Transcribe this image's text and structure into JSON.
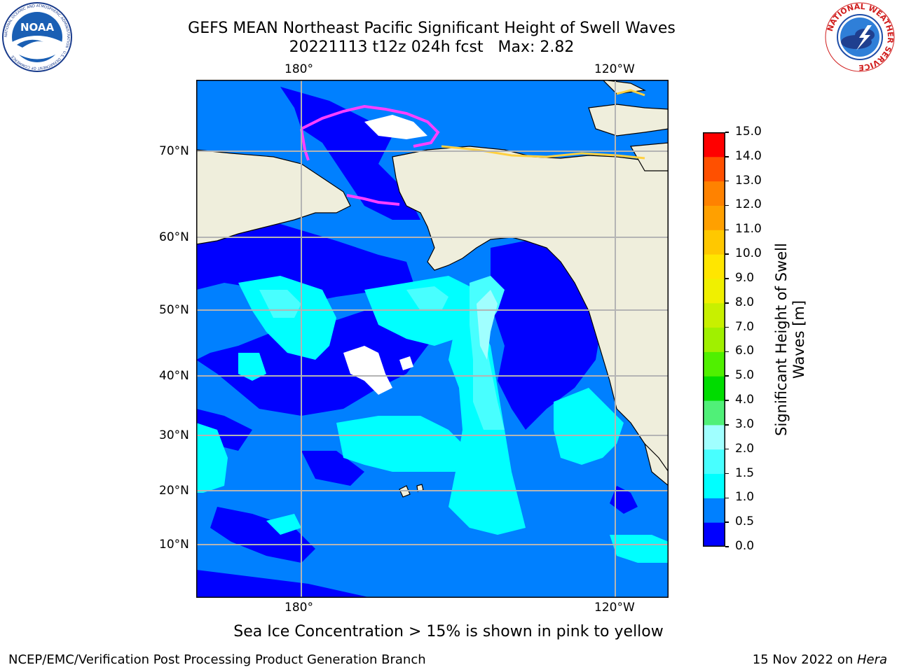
{
  "header": {
    "title_line1": "GEFS MEAN Northeast Pacific Significant Height of Swell Waves",
    "title_line2": "20221113 t12z 024h fcst   Max: 2.82"
  },
  "logos": {
    "left": {
      "name": "noaa-logo",
      "text": "NOAA",
      "ring_text": "NATIONAL OCEANIC AND ATMOSPHERIC ADMINISTRATION · U.S. DEPARTMENT OF COMMERCE"
    },
    "right": {
      "name": "nws-logo",
      "ring_text": "NATIONAL WEATHER SERVICE"
    }
  },
  "map": {
    "lon_ticks_top": [
      "180°",
      "120°W"
    ],
    "lon_ticks_bottom": [
      "180°",
      "120°W"
    ],
    "lat_ticks": [
      "70°N",
      "60°N",
      "50°N",
      "40°N",
      "30°N",
      "20°N",
      "10°N"
    ],
    "colors": {
      "land": "#efeedc",
      "ocean_low": "#0000ff",
      "ocean_mid": "#0080ff",
      "ocean_high": "#00ffff",
      "ocean_peak": "#a0ffff",
      "ice_edge": "#ff40ff",
      "grid": "#b4b4b4"
    }
  },
  "colorbar": {
    "label_line1": "Significant Height of Swell",
    "label_line2": "Waves [m]",
    "ticks": [
      "0.0",
      "0.5",
      "1.0",
      "1.5",
      "2.0",
      "3.0",
      "4.0",
      "5.0",
      "6.0",
      "7.0",
      "8.0",
      "9.0",
      "10.0",
      "11.0",
      "12.0",
      "13.0",
      "14.0",
      "15.0"
    ],
    "colors": [
      "#0000ff",
      "#0080ff",
      "#00ffff",
      "#48ffff",
      "#a0ffff",
      "#50f078",
      "#00dc00",
      "#50f000",
      "#a0f000",
      "#c8f000",
      "#f0f000",
      "#ffe600",
      "#ffc800",
      "#ffa000",
      "#ff8200",
      "#ff5000",
      "#ff0000"
    ]
  },
  "caption": "Sea Ice Concentration > 15% is shown in pink to yellow",
  "footer": {
    "left": "NCEP/EMC/Verification Post Processing Product Generation Branch",
    "right_prefix": "15 Nov 2022 on ",
    "right_italic": "Hera"
  }
}
